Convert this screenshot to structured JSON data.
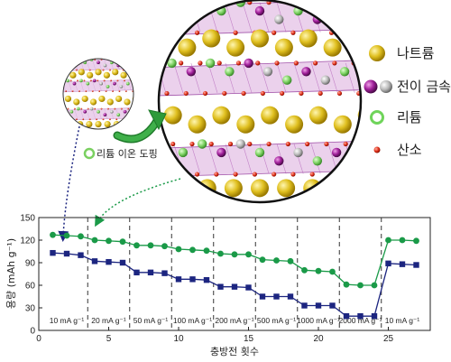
{
  "legend": {
    "items": [
      {
        "label": "나트륨",
        "icon": "gold-sphere-icon",
        "color": "#d8b820"
      },
      {
        "label": "전이 금속",
        "icon": "purple-gray-spheres-icon",
        "color": "#9a1e8c"
      },
      {
        "label": "리튬",
        "icon": "green-ring-icon",
        "color": "#5fcf4a"
      },
      {
        "label": "산소",
        "icon": "red-sphere-icon",
        "color": "#e02a1a"
      }
    ]
  },
  "doping_label": "리튬 이온 도핑",
  "colors": {
    "green": "#1a9a48",
    "navy": "#1c2580",
    "arrow_green": "#2e9a3a"
  },
  "chart_data": {
    "type": "line",
    "xlabel": "충방전 횟수",
    "ylabel": "용량 (mAh g⁻¹)",
    "xlim": [
      0,
      28
    ],
    "ylim": [
      0,
      150
    ],
    "xticks": [
      "0",
      "5",
      "10",
      "15",
      "20",
      "25"
    ],
    "yticks": [
      "0",
      "30",
      "60",
      "90",
      "120",
      "150"
    ],
    "rate_labels": [
      "10 mA g⁻¹",
      "20 mA g⁻¹",
      "50 mA g⁻¹",
      "100 mA g⁻¹",
      "200 mA g⁻¹",
      "500 mA g⁻¹",
      "1000 mA g⁻¹",
      "2000 mA g⁻¹",
      "10 mA g⁻¹"
    ],
    "boundaries": [
      3.5,
      6.5,
      9.5,
      12.5,
      15.5,
      18.5,
      21.5,
      24.5
    ],
    "series": [
      {
        "color": "#1a9a48",
        "marker": "circle",
        "x": [
          1,
          2,
          3,
          4,
          5,
          6,
          7,
          8,
          9,
          10,
          11,
          12,
          13,
          14,
          15,
          16,
          17,
          18,
          19,
          20,
          21,
          22,
          23,
          24,
          25,
          26,
          27
        ],
        "y": [
          127,
          126,
          125,
          120,
          119,
          118,
          113,
          113,
          112,
          108,
          107,
          106,
          102,
          101,
          101,
          94,
          93,
          92,
          80,
          79,
          78,
          61,
          60,
          60,
          120,
          120,
          119
        ]
      },
      {
        "color": "#1c2580",
        "marker": "square",
        "x": [
          1,
          2,
          3,
          4,
          5,
          6,
          7,
          8,
          9,
          10,
          11,
          12,
          13,
          14,
          15,
          16,
          17,
          18,
          19,
          20,
          21,
          22,
          23,
          24,
          25,
          26,
          27
        ],
        "y": [
          103,
          102,
          100,
          92,
          91,
          90,
          77,
          77,
          76,
          68,
          68,
          67,
          58,
          58,
          57,
          45,
          45,
          45,
          33,
          33,
          33,
          19,
          19,
          19,
          89,
          88,
          87
        ]
      }
    ]
  }
}
